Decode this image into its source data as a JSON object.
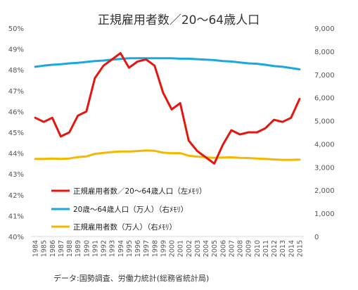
{
  "chart_data": {
    "type": "line",
    "title": "正規雇用者数／20～64歳人口",
    "source": "データ:国勢調査、労働力統計(総務省統計局)",
    "x": [
      "1984",
      "1985",
      "1986",
      "1987",
      "1988",
      "1989",
      "1990",
      "1991",
      "1992",
      "1993",
      "1994",
      "1995",
      "1996",
      "1997",
      "1998",
      "1999",
      "2000",
      "2001",
      "2002",
      "2003",
      "2004",
      "2005",
      "2006",
      "2007",
      "2008",
      "2009",
      "2010",
      "2011",
      "2012",
      "2013",
      "2014",
      "2015"
    ],
    "y_left": {
      "min": 40,
      "max": 50,
      "step": 1,
      "tick_labels": [
        "40%",
        "41%",
        "42%",
        "43%",
        "44%",
        "45%",
        "46%",
        "47%",
        "48%",
        "49%",
        "50%"
      ]
    },
    "y_right": {
      "min": 0,
      "max": 9000,
      "step": 1000,
      "tick_labels": [
        "0",
        "1,000",
        "2,000",
        "3,000",
        "4,000",
        "5,000",
        "6,000",
        "7,000",
        "8,000",
        "9,000"
      ]
    },
    "grid": false,
    "legend_position": "bottom-left",
    "series": [
      {
        "name": "正規雇用者数／20～64歳人口（左ﾒﾓﾘ）",
        "axis": "left",
        "color": "#e8150f",
        "values": [
          45.7,
          45.5,
          45.7,
          44.8,
          45.0,
          45.8,
          46.0,
          47.6,
          48.2,
          48.5,
          48.8,
          48.1,
          48.4,
          48.5,
          48.2,
          46.9,
          46.1,
          46.4,
          44.6,
          44.1,
          43.8,
          43.5,
          44.4,
          45.1,
          44.9,
          45.0,
          45.0,
          45.2,
          45.6,
          45.5,
          45.7,
          46.6
        ]
      },
      {
        "name": "20歳～64歳人口（万人）（右ﾒﾓﾘ）",
        "axis": "right",
        "color": "#1ba7e2",
        "values": [
          7330,
          7380,
          7420,
          7440,
          7480,
          7500,
          7540,
          7580,
          7600,
          7640,
          7670,
          7700,
          7700,
          7700,
          7700,
          7700,
          7700,
          7680,
          7680,
          7660,
          7640,
          7620,
          7580,
          7560,
          7520,
          7480,
          7460,
          7420,
          7360,
          7330,
          7280,
          7220
        ]
      },
      {
        "name": "正規雇用者数（万人）（右ﾒﾓﾘ）",
        "axis": "right",
        "color": "#f5b800",
        "values": [
          3350,
          3350,
          3370,
          3350,
          3370,
          3430,
          3460,
          3570,
          3610,
          3650,
          3670,
          3670,
          3690,
          3720,
          3700,
          3620,
          3600,
          3600,
          3490,
          3450,
          3420,
          3400,
          3410,
          3420,
          3400,
          3390,
          3370,
          3350,
          3330,
          3310,
          3310,
          3320
        ]
      }
    ]
  }
}
